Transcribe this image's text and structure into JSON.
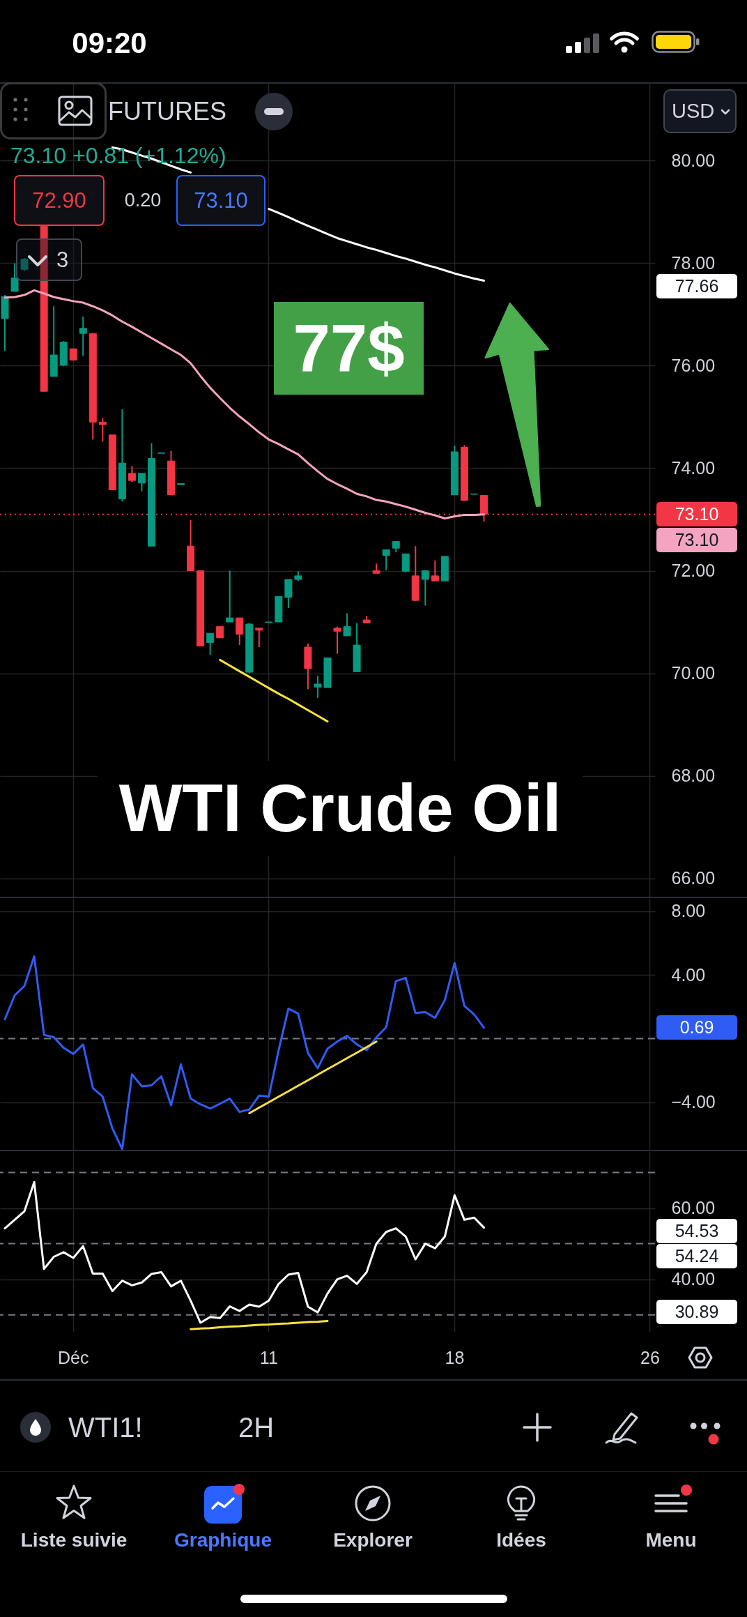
{
  "chart_data": [
    {
      "type": "candlestick",
      "title": "WTI Crude Oil",
      "categories": [
        null,
        null,
        null,
        null,
        null,
        null,
        null,
        null,
        null,
        null,
        null,
        null,
        null,
        null,
        null,
        null,
        null,
        null,
        null,
        null,
        null,
        null,
        null,
        null,
        null,
        null,
        null,
        null,
        null,
        null,
        null,
        null,
        null,
        null,
        null,
        null,
        null,
        null,
        null,
        null,
        null,
        null,
        null,
        null,
        null,
        null,
        null,
        null,
        null,
        null,
        null,
        null,
        null,
        null,
        null,
        null,
        null,
        null,
        null,
        null,
        null,
        null,
        null,
        null,
        null,
        null,
        null
      ],
      "ohlc": [
        [
          76.92,
          77.38,
          76.29,
          77.35
        ],
        [
          77.45,
          78.0,
          77.45,
          77.71
        ],
        [
          77.88,
          78.1,
          77.85,
          78.08
        ],
        null,
        [
          78.72,
          78.72,
          75.5,
          75.5
        ],
        [
          75.79,
          77.16,
          75.79,
          76.21
        ],
        [
          76.01,
          76.48,
          75.99,
          76.46
        ],
        [
          76.33,
          76.33,
          76.11,
          76.11
        ],
        [
          76.63,
          76.96,
          76.19,
          76.73
        ],
        [
          76.63,
          76.63,
          74.56,
          74.9
        ],
        [
          74.9,
          74.98,
          74.52,
          74.85
        ],
        [
          74.65,
          74.65,
          73.58,
          73.58
        ],
        [
          73.4,
          75.15,
          73.35,
          74.1
        ],
        [
          73.9,
          74.04,
          73.73,
          73.76
        ],
        [
          73.71,
          73.9,
          73.55,
          73.9
        ],
        [
          72.48,
          74.49,
          72.48,
          74.19
        ],
        [
          74.29,
          74.3,
          74.29,
          74.3
        ],
        [
          74.14,
          74.34,
          73.48,
          73.48
        ],
        [
          73.68,
          73.7,
          73.68,
          73.7
        ],
        [
          72.48,
          72.99,
          72.0,
          72.0
        ],
        [
          72.0,
          72.0,
          70.53,
          70.53
        ],
        [
          70.6,
          70.78,
          70.36,
          70.78
        ],
        [
          70.91,
          70.91,
          70.69,
          70.69
        ],
        [
          71.0,
          72.0,
          71.0,
          71.08
        ],
        [
          71.08,
          71.08,
          70.55,
          70.76
        ],
        [
          70.02,
          70.98,
          70.0,
          70.96
        ],
        [
          70.88,
          70.88,
          70.51,
          70.84
        ],
        [
          70.99,
          71.0,
          70.99,
          71.0
        ],
        [
          71.0,
          71.5,
          71.0,
          71.5
        ],
        [
          71.48,
          71.83,
          71.27,
          71.83
        ],
        [
          71.83,
          71.99,
          71.8,
          71.9
        ],
        [
          70.51,
          70.58,
          69.69,
          70.09
        ],
        [
          69.73,
          69.95,
          69.52,
          69.79
        ],
        [
          69.72,
          70.3,
          69.72,
          70.3
        ],
        [
          70.88,
          70.91,
          70.38,
          70.82
        ],
        [
          70.73,
          71.17,
          70.73,
          70.91
        ],
        [
          70.03,
          70.98,
          70.03,
          70.55
        ],
        [
          71.04,
          71.12,
          70.98,
          70.98
        ],
        [
          72.0,
          72.14,
          71.95,
          71.95
        ],
        [
          72.3,
          72.41,
          72.01,
          72.41
        ],
        [
          72.44,
          72.57,
          72.36,
          72.57
        ],
        [
          71.99,
          72.33,
          71.97,
          72.33
        ],
        [
          71.9,
          72.48,
          71.41,
          71.42
        ],
        [
          71.83,
          72.0,
          71.32,
          72.0
        ],
        [
          71.9,
          72.2,
          71.8,
          71.8
        ],
        [
          71.8,
          72.28,
          71.8,
          72.28
        ],
        [
          73.48,
          74.44,
          73.48,
          74.32
        ],
        [
          74.41,
          74.45,
          73.37,
          73.37
        ],
        [
          73.49,
          73.5,
          73.49,
          73.5
        ],
        [
          73.47,
          73.47,
          72.96,
          73.1
        ],
        null,
        null,
        null,
        null,
        null,
        null,
        null,
        null,
        null,
        null,
        null,
        null,
        null,
        null,
        null,
        null,
        null
      ],
      "colors": [
        "#089981",
        "#089981",
        "#089981",
        null,
        "#f23645",
        "#089981",
        "#089981",
        "#f23645",
        "#089981",
        "#f23645",
        "#f23645",
        "#f23645",
        "#089981",
        "#f23645",
        "#089981",
        "#089981",
        "#089981",
        "#f23645",
        "#089981",
        "#f23645",
        "#f23645",
        "#089981",
        "#f23645",
        "#089981",
        "#f23645",
        "#089981",
        "#f23645",
        "#089981",
        "#089981",
        "#089981",
        "#089981",
        "#f23645",
        "#089981",
        "#089981",
        "#f23645",
        "#089981",
        "#089981",
        "#f23645",
        "#f23645",
        "#089981",
        "#089981",
        "#089981",
        "#f23645",
        "#089981",
        "#f23645",
        "#089981",
        "#089981",
        "#f23645",
        "#089981",
        "#f23645",
        null,
        null,
        null,
        null,
        null,
        null,
        null,
        null,
        null,
        null,
        null,
        null,
        null,
        null,
        null,
        null,
        null
      ],
      "series": [
        {
          "type": "line",
          "color": "#f4a3c0",
          "values": [
            77.33,
            77.34,
            77.38,
            77.47,
            77.41,
            77.34,
            77.3,
            77.26,
            77.23,
            77.16,
            77.08,
            76.98,
            76.86,
            76.76,
            76.65,
            76.54,
            76.43,
            76.32,
            76.21,
            76.05,
            75.8,
            75.57,
            75.37,
            75.18,
            75.01,
            74.86,
            74.7,
            74.56,
            74.47,
            74.37,
            74.27,
            74.1,
            73.94,
            73.79,
            73.69,
            73.6,
            73.5,
            73.45,
            73.38,
            73.35,
            73.3,
            73.25,
            73.19,
            73.13,
            73.08,
            73.02,
            73.06,
            73.09,
            73.09,
            73.1,
            null,
            null,
            null,
            null,
            null,
            null,
            null,
            null,
            null,
            null,
            null,
            null,
            null,
            null,
            null,
            null,
            null
          ]
        },
        {
          "type": "line",
          "color": "#ffffff",
          "values": [
            null,
            null,
            null,
            null,
            null,
            null,
            null,
            null,
            null,
            null,
            null,
            80.26,
            80.22,
            80.16,
            80.1,
            80.04,
            79.97,
            79.9,
            79.83,
            79.77,
            null,
            null,
            null,
            null,
            null,
            null,
            null,
            79.06,
            78.98,
            78.9,
            78.81,
            78.73,
            78.65,
            78.57,
            78.49,
            78.43,
            78.37,
            78.31,
            78.26,
            78.2,
            78.14,
            78.09,
            78.03,
            77.97,
            77.92,
            77.86,
            77.8,
            77.75,
            77.7,
            77.66,
            null,
            null,
            null,
            null,
            null,
            null,
            null,
            null,
            null,
            null,
            null,
            null,
            null,
            null,
            null,
            null,
            null
          ]
        },
        {
          "type": "line",
          "color": "#f7e13e",
          "values": [
            null,
            null,
            null,
            null,
            null,
            null,
            null,
            null,
            null,
            null,
            null,
            null,
            null,
            null,
            null,
            null,
            null,
            null,
            null,
            null,
            null,
            null,
            70.26,
            70.15,
            70.04,
            69.93,
            69.82,
            69.71,
            69.6,
            69.5,
            69.39,
            69.28,
            69.17,
            69.06,
            null,
            null,
            null,
            null,
            null,
            null,
            null,
            null,
            null,
            null,
            null,
            null,
            null,
            null,
            null,
            null,
            null,
            null,
            null,
            null,
            null,
            null,
            null,
            null,
            null,
            null,
            null,
            null,
            null,
            null,
            null,
            null,
            null
          ]
        }
      ],
      "ylim": [
        65.64,
        81.53
      ],
      "yticks": [
        {
          "value": 66,
          "label": "66.00"
        },
        {
          "value": 68,
          "label": "68.00"
        },
        {
          "value": 70,
          "label": "70.00"
        },
        {
          "value": 72,
          "label": "72.00"
        },
        {
          "value": 74,
          "label": "74.00"
        },
        {
          "value": 76,
          "label": "76.00"
        },
        {
          "value": 78,
          "label": "78.00"
        },
        {
          "value": 80,
          "label": "80.00"
        }
      ],
      "ref_lines": [
        {
          "axis": "y",
          "value": 73.1,
          "label": "73.10",
          "color": "#f23645",
          "line_style": "dotted"
        }
      ],
      "grid": true,
      "tick_labels": "y",
      "annotations": [
        "FUTURES",
        "73.10 +0.81 (+1.12%)",
        "72.90",
        "0.20",
        "73.10",
        "3",
        "USD",
        "77$",
        "77.66",
        "73.10"
      ]
    },
    {
      "type": "line",
      "categories": [
        null,
        null,
        null,
        null,
        null,
        null,
        null,
        null,
        null,
        null,
        null,
        null,
        null,
        null,
        null,
        null,
        null,
        null,
        null,
        null,
        null,
        null,
        null,
        null,
        null,
        null,
        null,
        null,
        null,
        null,
        null,
        null,
        null,
        null,
        null,
        null,
        null,
        null,
        null,
        null,
        null,
        null,
        null,
        null,
        null,
        null,
        null,
        null,
        null,
        null,
        null,
        null,
        null,
        null,
        null,
        null,
        null,
        null,
        null,
        null,
        null,
        null,
        null,
        null,
        null,
        null,
        null
      ],
      "series": [
        {
          "color": "#2f5cf5",
          "values": [
            1.22,
            2.72,
            3.31,
            5.17,
            0.24,
            0.09,
            -0.57,
            -0.96,
            -0.36,
            -3.1,
            -3.64,
            -5.64,
            -6.93,
            -2.24,
            -2.99,
            -2.93,
            -2.36,
            -4.18,
            -1.61,
            -3.76,
            -4.12,
            -4.39,
            -4.09,
            -3.76,
            -4.6,
            -4.45,
            -3.58,
            -3.64,
            -0.72,
            1.88,
            1.58,
            -0.9,
            -1.85,
            -0.63,
            -0.18,
            0.18,
            -0.36,
            -0.72,
            0.09,
            0.72,
            3.61,
            3.82,
            1.61,
            1.67,
            1.31,
            2.42,
            4.75,
            2.06,
            1.52,
            0.69,
            null,
            null,
            null,
            null,
            null,
            null,
            null,
            null,
            null,
            null,
            null,
            null,
            null,
            null,
            null,
            null,
            null
          ]
        },
        {
          "color": "#f7e13e",
          "values": [
            null,
            null,
            null,
            null,
            null,
            null,
            null,
            null,
            null,
            null,
            null,
            null,
            null,
            null,
            null,
            null,
            null,
            null,
            null,
            null,
            null,
            null,
            null,
            null,
            null,
            -4.68,
            -4.33,
            -3.99,
            -3.64,
            -3.3,
            -2.95,
            -2.61,
            -2.26,
            -1.91,
            -1.57,
            -1.22,
            -0.88,
            -0.53,
            -0.18,
            null,
            null,
            null,
            null,
            null,
            null,
            null,
            null,
            null,
            null,
            null,
            null,
            null,
            null,
            null,
            null,
            null,
            null,
            null,
            null,
            null,
            null,
            null,
            null,
            null,
            null,
            null,
            null
          ]
        }
      ],
      "ylim": [
        -6.98,
        8.83
      ],
      "yticks": [
        {
          "value": -4,
          "label": "−4.00"
        },
        {
          "value": 4,
          "label": "4.00"
        },
        {
          "value": 8,
          "label": "8.00"
        }
      ],
      "ref_lines": [
        {
          "axis": "y",
          "value": 0,
          "color": "#787b86",
          "line_style": "dashed"
        }
      ],
      "grid": true,
      "tick_labels": "y",
      "annotations": [
        "0.69"
      ]
    },
    {
      "type": "line",
      "categories": [
        null,
        null,
        null,
        null,
        null,
        null,
        null,
        "Déc",
        null,
        null,
        null,
        null,
        null,
        null,
        null,
        null,
        null,
        null,
        null,
        null,
        null,
        null,
        null,
        null,
        null,
        null,
        null,
        "11",
        null,
        null,
        null,
        null,
        null,
        null,
        null,
        null,
        null,
        null,
        null,
        null,
        null,
        null,
        null,
        null,
        null,
        null,
        "18",
        null,
        null,
        null,
        null,
        null,
        null,
        null,
        null,
        null,
        null,
        null,
        null,
        null,
        null,
        null,
        null,
        null,
        null,
        null,
        "26"
      ],
      "series": [
        {
          "color": "#ffffff",
          "values": [
            54.3,
            56.7,
            59.1,
            67.3,
            42.9,
            46.3,
            47.6,
            46.0,
            49.3,
            41.6,
            41.6,
            36.7,
            39.6,
            38.3,
            39.1,
            41.5,
            42.0,
            38.0,
            39.6,
            34.0,
            27.8,
            29.4,
            29.1,
            32.4,
            31.1,
            32.9,
            32.3,
            34.0,
            38.7,
            41.3,
            41.8,
            32.3,
            30.7,
            36.0,
            40.0,
            41.0,
            38.7,
            42.0,
            50.0,
            53.3,
            54.3,
            52.0,
            45.6,
            50.0,
            48.7,
            52.0,
            63.6,
            56.7,
            57.3,
            54.5,
            null,
            null,
            null,
            null,
            null,
            null,
            null,
            null,
            null,
            null,
            null,
            null,
            null,
            null,
            null,
            null,
            null
          ]
        },
        {
          "color": "#f7e13e",
          "values": [
            null,
            null,
            null,
            null,
            null,
            null,
            null,
            null,
            null,
            null,
            null,
            null,
            null,
            null,
            null,
            null,
            null,
            null,
            null,
            26.0,
            26.2,
            26.3,
            26.5,
            26.7,
            26.8,
            27.0,
            27.2,
            27.3,
            27.5,
            27.6,
            27.8,
            28.0,
            28.1,
            28.3,
            null,
            null,
            null,
            null,
            null,
            null,
            null,
            null,
            null,
            null,
            null,
            null,
            null,
            null,
            null,
            null,
            null,
            null,
            null,
            null,
            null,
            null,
            null,
            null,
            null,
            null,
            null,
            null,
            null,
            null,
            null,
            null,
            null
          ]
        }
      ],
      "ylim": [
        25.25,
        75.96
      ],
      "yticks": [
        {
          "value": 40,
          "label": "40.00"
        },
        {
          "value": 60,
          "label": "60.00"
        }
      ],
      "ref_lines": [
        {
          "axis": "y",
          "value": 70,
          "color": "#787b86",
          "line_style": "dashed"
        },
        {
          "axis": "y",
          "value": 50,
          "color": "#787b86",
          "line_style": "dashed"
        },
        {
          "axis": "y",
          "value": 30,
          "color": "#787b86",
          "line_style": "dashed"
        }
      ],
      "grid": true,
      "annotations": [
        "54.53",
        "54.24",
        "30.89"
      ]
    },
    {
      "type": "other",
      "annotations": [
        "09:20",
        "WTI1!",
        "2H",
        "Liste suivie",
        "Graphique",
        "Explorer",
        "Idées",
        "Menu"
      ]
    }
  ]
}
